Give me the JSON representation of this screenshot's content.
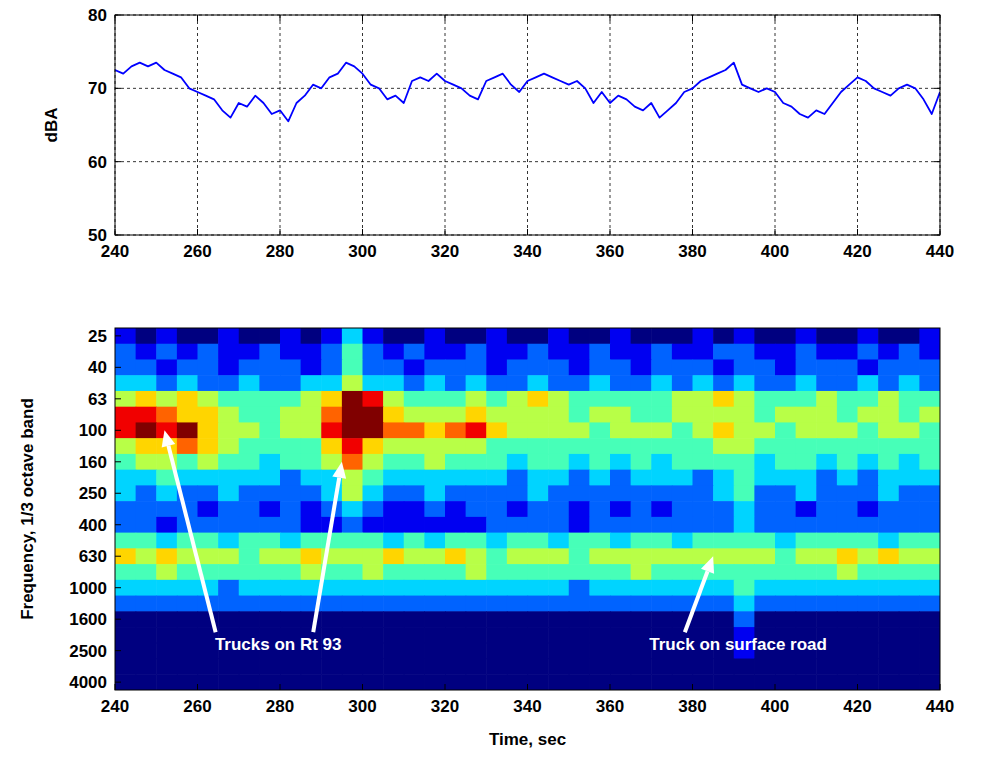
{
  "chart_data": [
    {
      "type": "line",
      "ylabel": "dBA",
      "color": "#0000ff",
      "grid": true,
      "xlim": [
        240,
        440
      ],
      "xticks": [
        240,
        260,
        280,
        300,
        320,
        340,
        360,
        380,
        400,
        420,
        440
      ],
      "ylim": [
        50,
        80
      ],
      "yticks": [
        50,
        60,
        70,
        80
      ],
      "x": [
        240,
        242,
        244,
        246,
        248,
        250,
        252,
        254,
        256,
        258,
        260,
        262,
        264,
        266,
        268,
        270,
        272,
        274,
        276,
        278,
        280,
        282,
        284,
        286,
        288,
        290,
        292,
        294,
        296,
        298,
        300,
        302,
        304,
        306,
        308,
        310,
        312,
        314,
        316,
        318,
        320,
        322,
        324,
        326,
        328,
        330,
        332,
        334,
        336,
        338,
        340,
        342,
        344,
        346,
        348,
        350,
        352,
        354,
        356,
        358,
        360,
        362,
        364,
        366,
        368,
        370,
        372,
        374,
        376,
        378,
        380,
        382,
        384,
        386,
        388,
        390,
        392,
        394,
        396,
        398,
        400,
        402,
        404,
        406,
        408,
        410,
        412,
        414,
        416,
        418,
        420,
        422,
        424,
        426,
        428,
        430,
        432,
        434,
        436,
        438,
        440
      ],
      "values": [
        72.5,
        72,
        73,
        73.5,
        73,
        73.5,
        72.5,
        72,
        71.5,
        70,
        69.5,
        69,
        68.5,
        67,
        66,
        68,
        67.5,
        69,
        68,
        66.5,
        67,
        65.5,
        68,
        69,
        70.5,
        70,
        71.5,
        72,
        73.5,
        73,
        72,
        70.5,
        70,
        68.5,
        69,
        68,
        71,
        71.5,
        71,
        72,
        71,
        70.5,
        70,
        69,
        68.5,
        71,
        71.5,
        72,
        70.5,
        69.5,
        71,
        71.5,
        72,
        71.5,
        71,
        70.5,
        71,
        70,
        68,
        69.5,
        68,
        69,
        68.5,
        67.5,
        67,
        68,
        66,
        67,
        68,
        69.5,
        70,
        71,
        71.5,
        72,
        72.5,
        73.5,
        70.5,
        70,
        69.5,
        70,
        69.5,
        68,
        67.5,
        66.5,
        66,
        67,
        66.5,
        68,
        69.5,
        70.5,
        71.5,
        71,
        70,
        69.5,
        69,
        70,
        70.5,
        70,
        68.5,
        66.5,
        69.5
      ]
    },
    {
      "type": "heatmap",
      "xlabel": "Time, sec",
      "ylabel": "Frequency, 1/3 octave band",
      "xlim": [
        240,
        440
      ],
      "xticks": [
        240,
        260,
        280,
        300,
        320,
        340,
        360,
        380,
        400,
        420,
        440
      ],
      "x": [
        240,
        245,
        250,
        255,
        260,
        265,
        270,
        275,
        280,
        285,
        290,
        295,
        300,
        305,
        310,
        315,
        320,
        325,
        330,
        335,
        340,
        345,
        350,
        355,
        360,
        365,
        370,
        375,
        380,
        385,
        390,
        395,
        400,
        405,
        410,
        415,
        420,
        425,
        430,
        435
      ],
      "y": [
        "25",
        null,
        "40",
        null,
        "63",
        null,
        "100",
        null,
        "160",
        null,
        "250",
        null,
        "400",
        null,
        "630",
        null,
        "1000",
        null,
        "1600",
        null,
        "2500",
        null,
        "4000"
      ],
      "zlim": [
        1,
        10
      ],
      "cells": [
        [
          2,
          1,
          2,
          1,
          1,
          2,
          1,
          1,
          2,
          1,
          2,
          4,
          2,
          1,
          1,
          2,
          1,
          1,
          2,
          1,
          1,
          2,
          1,
          1,
          2,
          1,
          1,
          1,
          2,
          1,
          2,
          1,
          1,
          2,
          1,
          1,
          2,
          1,
          1,
          2
        ],
        [
          3,
          2,
          3,
          2,
          3,
          2,
          2,
          3,
          2,
          2,
          3,
          5,
          3,
          2,
          3,
          2,
          2,
          3,
          2,
          2,
          3,
          2,
          2,
          3,
          2,
          2,
          3,
          2,
          2,
          3,
          3,
          2,
          2,
          3,
          2,
          2,
          3,
          2,
          3,
          2
        ],
        [
          3,
          3,
          2,
          3,
          3,
          2,
          3,
          3,
          3,
          2,
          3,
          5,
          3,
          3,
          2,
          3,
          3,
          3,
          2,
          3,
          3,
          3,
          2,
          3,
          3,
          2,
          3,
          3,
          3,
          2,
          3,
          3,
          2,
          3,
          3,
          3,
          2,
          3,
          3,
          3
        ],
        [
          4,
          4,
          3,
          4,
          3,
          3,
          4,
          3,
          3,
          4,
          4,
          6,
          4,
          4,
          3,
          4,
          3,
          4,
          3,
          3,
          4,
          3,
          3,
          4,
          3,
          3,
          4,
          3,
          4,
          3,
          4,
          3,
          3,
          4,
          3,
          3,
          4,
          3,
          4,
          3
        ],
        [
          6,
          7,
          6,
          7,
          6,
          5,
          5,
          5,
          5,
          6,
          7,
          10,
          9,
          6,
          5,
          5,
          5,
          6,
          5,
          6,
          7,
          6,
          5,
          5,
          5,
          5,
          5,
          6,
          6,
          7,
          6,
          5,
          5,
          5,
          6,
          5,
          5,
          6,
          5,
          5
        ],
        [
          9,
          9,
          8,
          7,
          7,
          6,
          5,
          5,
          6,
          6,
          8,
          10,
          10,
          7,
          6,
          6,
          6,
          7,
          6,
          6,
          6,
          6,
          5,
          6,
          6,
          5,
          5,
          6,
          6,
          6,
          6,
          5,
          6,
          6,
          6,
          5,
          6,
          6,
          5,
          6
        ],
        [
          9,
          10,
          9,
          10,
          7,
          6,
          6,
          5,
          6,
          6,
          9,
          10,
          10,
          8,
          8,
          7,
          8,
          9,
          7,
          6,
          6,
          6,
          6,
          5,
          6,
          6,
          6,
          5,
          6,
          7,
          6,
          6,
          5,
          6,
          6,
          6,
          5,
          6,
          6,
          5
        ],
        [
          6,
          7,
          7,
          8,
          7,
          6,
          5,
          5,
          5,
          5,
          7,
          9,
          7,
          6,
          6,
          6,
          6,
          6,
          5,
          5,
          5,
          5,
          5,
          5,
          5,
          5,
          5,
          5,
          5,
          6,
          6,
          5,
          5,
          5,
          5,
          5,
          5,
          5,
          5,
          5
        ],
        [
          5,
          6,
          6,
          5,
          6,
          5,
          5,
          4,
          5,
          5,
          6,
          8,
          6,
          5,
          5,
          6,
          5,
          5,
          5,
          4,
          5,
          5,
          4,
          5,
          4,
          5,
          4,
          5,
          5,
          5,
          5,
          4,
          5,
          5,
          4,
          5,
          4,
          5,
          4,
          5
        ],
        [
          4,
          4,
          5,
          4,
          4,
          4,
          4,
          4,
          3,
          4,
          4,
          6,
          5,
          4,
          4,
          4,
          4,
          4,
          4,
          3,
          4,
          4,
          3,
          4,
          3,
          4,
          4,
          4,
          3,
          4,
          5,
          4,
          4,
          4,
          3,
          4,
          3,
          4,
          4,
          4
        ],
        [
          4,
          3,
          4,
          3,
          3,
          4,
          3,
          3,
          3,
          3,
          4,
          6,
          4,
          3,
          3,
          4,
          3,
          3,
          3,
          3,
          4,
          3,
          3,
          3,
          3,
          3,
          3,
          3,
          3,
          4,
          5,
          3,
          3,
          4,
          3,
          3,
          3,
          4,
          3,
          3
        ],
        [
          3,
          3,
          3,
          3,
          2,
          3,
          3,
          2,
          3,
          2,
          3,
          4,
          3,
          2,
          2,
          3,
          2,
          3,
          3,
          2,
          3,
          3,
          2,
          3,
          2,
          3,
          2,
          3,
          3,
          3,
          4,
          3,
          3,
          2,
          3,
          3,
          2,
          3,
          3,
          3
        ],
        [
          3,
          3,
          2,
          3,
          3,
          3,
          3,
          3,
          3,
          2,
          2,
          3,
          2,
          2,
          2,
          2,
          2,
          2,
          3,
          3,
          3,
          3,
          2,
          3,
          3,
          3,
          3,
          3,
          3,
          3,
          4,
          3,
          3,
          3,
          3,
          3,
          3,
          3,
          3,
          3
        ],
        [
          5,
          5,
          4,
          5,
          5,
          4,
          5,
          5,
          4,
          5,
          5,
          5,
          5,
          4,
          5,
          4,
          5,
          5,
          4,
          5,
          5,
          4,
          5,
          5,
          4,
          5,
          5,
          4,
          5,
          5,
          5,
          5,
          4,
          5,
          5,
          5,
          5,
          4,
          5,
          5
        ],
        [
          7,
          6,
          7,
          6,
          6,
          6,
          5,
          6,
          6,
          7,
          6,
          6,
          6,
          7,
          6,
          6,
          7,
          6,
          5,
          6,
          6,
          6,
          5,
          6,
          6,
          6,
          6,
          6,
          6,
          6,
          6,
          6,
          5,
          6,
          6,
          7,
          6,
          7,
          6,
          6
        ],
        [
          5,
          5,
          6,
          5,
          5,
          5,
          5,
          5,
          5,
          6,
          5,
          5,
          6,
          5,
          5,
          5,
          5,
          6,
          5,
          5,
          5,
          5,
          5,
          5,
          5,
          6,
          5,
          5,
          5,
          5,
          5,
          5,
          5,
          5,
          5,
          6,
          5,
          5,
          5,
          5
        ],
        [
          4,
          4,
          4,
          4,
          4,
          3,
          4,
          4,
          4,
          4,
          4,
          4,
          4,
          4,
          4,
          4,
          4,
          4,
          4,
          4,
          4,
          4,
          3,
          4,
          4,
          4,
          4,
          4,
          4,
          4,
          5,
          4,
          4,
          4,
          4,
          4,
          4,
          4,
          4,
          4
        ],
        [
          3,
          3,
          3,
          3,
          3,
          3,
          3,
          3,
          3,
          3,
          3,
          3,
          3,
          3,
          3,
          3,
          3,
          3,
          3,
          3,
          3,
          3,
          3,
          3,
          3,
          3,
          3,
          3,
          3,
          3,
          4,
          3,
          3,
          3,
          3,
          3,
          3,
          3,
          3,
          3
        ],
        [
          1,
          1,
          1,
          1,
          1,
          1,
          1,
          1,
          1,
          1,
          1,
          1,
          1,
          1,
          1,
          1,
          1,
          1,
          1,
          1,
          1,
          1,
          1,
          1,
          1,
          1,
          1,
          1,
          1,
          1,
          3,
          1,
          1,
          1,
          1,
          1,
          1,
          1,
          1,
          1
        ],
        [
          1,
          1,
          1,
          1,
          1,
          1,
          1,
          1,
          1,
          1,
          1,
          1,
          1,
          1,
          1,
          1,
          1,
          1,
          1,
          1,
          1,
          1,
          1,
          1,
          1,
          1,
          1,
          1,
          1,
          1,
          2,
          1,
          1,
          1,
          1,
          1,
          1,
          1,
          1,
          1
        ],
        [
          1,
          1,
          1,
          1,
          1,
          1,
          1,
          1,
          1,
          1,
          1,
          1,
          1,
          1,
          1,
          1,
          1,
          1,
          1,
          1,
          1,
          1,
          1,
          1,
          1,
          1,
          1,
          1,
          1,
          1,
          2,
          1,
          1,
          1,
          1,
          1,
          1,
          1,
          1,
          1
        ],
        [
          1,
          1,
          1,
          1,
          1,
          1,
          1,
          1,
          1,
          1,
          1,
          1,
          1,
          1,
          1,
          1,
          1,
          1,
          1,
          1,
          1,
          1,
          1,
          1,
          1,
          1,
          1,
          1,
          1,
          1,
          1,
          1,
          1,
          1,
          1,
          1,
          1,
          1,
          1,
          1
        ],
        [
          1,
          1,
          1,
          1,
          1,
          1,
          1,
          1,
          1,
          1,
          1,
          1,
          1,
          1,
          1,
          1,
          1,
          1,
          1,
          1,
          1,
          1,
          1,
          1,
          1,
          1,
          1,
          1,
          1,
          1,
          1,
          1,
          1,
          1,
          1,
          1,
          1,
          1,
          1,
          1
        ]
      ],
      "annotations": [
        {
          "text": "Trucks on Rt 93",
          "targets": [
            {
              "x": 252,
              "y": "100"
            },
            {
              "x": 295,
              "y": "160"
            }
          ]
        },
        {
          "text": "Truck on surface road",
          "targets": [
            {
              "x": 385,
              "y": "630"
            }
          ]
        }
      ]
    }
  ]
}
